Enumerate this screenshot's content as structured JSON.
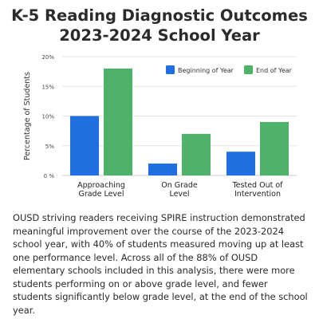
{
  "title_line1": "K-5 Reading Diagnostic Outcomes",
  "title_line2": "2023-2024 School Year",
  "chart_data": {
    "type": "bar",
    "categories": [
      [
        "Approaching",
        "Grade Level"
      ],
      [
        "On Grade",
        "Level"
      ],
      [
        "Tested Out of",
        "Intervention"
      ]
    ],
    "series": [
      {
        "name": "Beginning of Year",
        "color": "#1f6fe0",
        "values": [
          10,
          2,
          4
        ]
      },
      {
        "name": "End of Year",
        "color": "#4fb26b",
        "values": [
          18,
          7,
          9
        ]
      }
    ],
    "ylabel": "Percentage of Students",
    "ylim": [
      0,
      20
    ],
    "yticks": [
      0,
      5,
      10,
      15,
      20
    ],
    "ytick_labels": [
      "0 %",
      "5%",
      "10%",
      "15%",
      "20%"
    ],
    "grid": true,
    "legend_position": "top-right"
  },
  "caption": "OUSD striving readers receiving SPIRE instruction demonstrated meaningful improvement over the course of the 2023-2024 school year, with 40% of students measured moving up at least one performance level. Across all of the 88% of OUSD elementary schools included in this analysis, there were more students performing on or above grade level, and fewer students significantly below grade level, at the end of the school year."
}
